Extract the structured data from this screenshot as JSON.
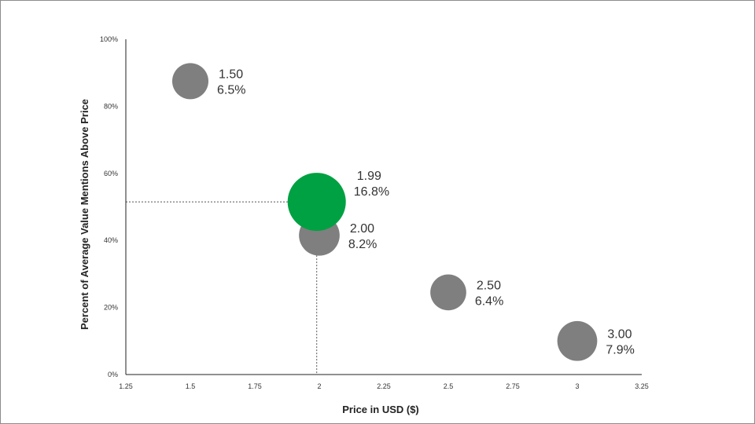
{
  "chart_data": {
    "type": "scatter",
    "xlabel": "Price in USD ($)",
    "ylabel": "Percent of Average Value Mentions Above Price",
    "xlim": [
      1.25,
      3.25
    ],
    "ylim": [
      0,
      100
    ],
    "x_ticks": [
      "1.25",
      "1.5",
      "1.75",
      "2",
      "2.25",
      "2.5",
      "2.75",
      "3",
      "3.25"
    ],
    "y_ticks": [
      "0%",
      "20%",
      "40%",
      "60%",
      "80%",
      "100%"
    ],
    "grid": false,
    "colors": {
      "default": "#7f7f7f",
      "highlight": "#00a142"
    },
    "points": [
      {
        "x": 1.5,
        "y": 87.5,
        "price_label": "1.50",
        "share_label": "6.5%",
        "size": 6.5,
        "highlight": false
      },
      {
        "x": 1.99,
        "y": 51.5,
        "price_label": "1.99",
        "share_label": "16.8%",
        "size": 16.8,
        "highlight": true
      },
      {
        "x": 2.0,
        "y": 41.5,
        "price_label": "2.00",
        "share_label": "8.2%",
        "size": 8.2,
        "highlight": false
      },
      {
        "x": 2.5,
        "y": 24.5,
        "price_label": "2.50",
        "share_label": "6.4%",
        "size": 6.4,
        "highlight": false
      },
      {
        "x": 3.0,
        "y": 10.0,
        "price_label": "3.00",
        "share_label": "7.9%",
        "size": 7.9,
        "highlight": false
      }
    ],
    "reference_point": {
      "x": 1.99,
      "y": 51.5
    }
  }
}
